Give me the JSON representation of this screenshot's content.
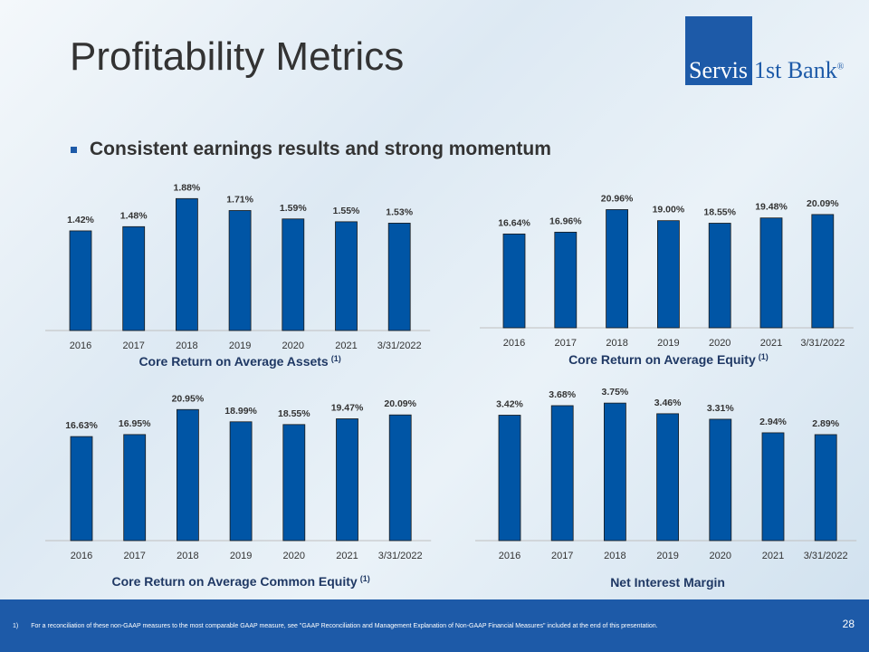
{
  "title": "Profitability Metrics",
  "logo": {
    "left": "Servis",
    "right": "1st Bank",
    "reg": "®"
  },
  "bullet": "Consistent earnings results and strong momentum",
  "chart_data": [
    {
      "type": "bar",
      "title": "Core Return on Average Assets",
      "title_sup": "(1)",
      "categories": [
        "2016",
        "2017",
        "2018",
        "2019",
        "2020",
        "2021",
        "3/31/2022"
      ],
      "values": [
        1.42,
        1.48,
        1.88,
        1.71,
        1.59,
        1.55,
        1.53
      ],
      "labels": [
        "1.42%",
        "1.48%",
        "1.88%",
        "1.71%",
        "1.59%",
        "1.55%",
        "1.53%"
      ],
      "ylim": [
        0,
        2.0
      ],
      "color": "#0055a5"
    },
    {
      "type": "bar",
      "title": "Core Return on Average Equity",
      "title_sup": "(1)",
      "categories": [
        "2016",
        "2017",
        "2018",
        "2019",
        "2020",
        "2021",
        "3/31/2022"
      ],
      "values": [
        16.64,
        16.96,
        20.96,
        19.0,
        18.55,
        19.48,
        20.09
      ],
      "labels": [
        "16.64%",
        "16.96%",
        "20.96%",
        "19.00%",
        "18.55%",
        "19.48%",
        "20.09%"
      ],
      "ylim": [
        0,
        22
      ],
      "color": "#0055a5"
    },
    {
      "type": "bar",
      "title": "Core Return on Average Common Equity",
      "title_sup": "(1)",
      "categories": [
        "2016",
        "2017",
        "2018",
        "2019",
        "2020",
        "2021",
        "3/31/2022"
      ],
      "values": [
        16.63,
        16.95,
        20.95,
        18.99,
        18.55,
        19.47,
        20.09
      ],
      "labels": [
        "16.63%",
        "16.95%",
        "20.95%",
        "18.99%",
        "18.55%",
        "19.47%",
        "20.09%"
      ],
      "ylim": [
        0,
        22
      ],
      "color": "#0055a5"
    },
    {
      "type": "bar",
      "title": "Net Interest Margin",
      "title_sup": "",
      "categories": [
        "2016",
        "2017",
        "2018",
        "2019",
        "2020",
        "2021",
        "3/31/2022"
      ],
      "values": [
        3.42,
        3.68,
        3.75,
        3.46,
        3.31,
        2.94,
        2.89
      ],
      "labels": [
        "3.42%",
        "3.68%",
        "3.75%",
        "3.46%",
        "3.31%",
        "2.94%",
        "2.89%"
      ],
      "ylim": [
        0,
        4.0
      ],
      "color": "#0055a5"
    }
  ],
  "footer": {
    "note_number": "1)",
    "note": "For a reconciliation of these non-GAAP measures to the most comparable GAAP measure, see \"GAAP Reconciliation and Management Explanation of Non-GAAP Financial Measures\" included at the end of this presentation.",
    "page": "28"
  }
}
